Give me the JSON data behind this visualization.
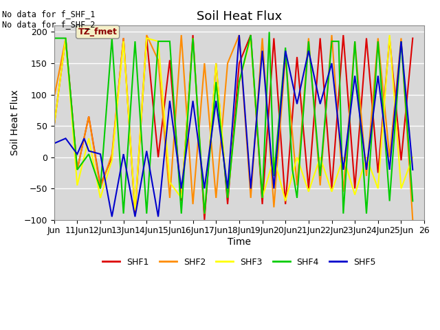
{
  "title": "Soil Heat Flux",
  "ylabel": "Soil Heat Flux",
  "xlabel": "Time",
  "ylim": [
    -100,
    210
  ],
  "yticks": [
    -100,
    -50,
    0,
    50,
    100,
    150,
    200
  ],
  "annotation_text": "No data for f_SHF_1\nNo data for f_SHF_2",
  "tz_label": "TZ_fmet",
  "background_color": "#d8d8d8",
  "series": {
    "SHF1": {
      "color": "#dd0000",
      "x": [
        10.0,
        10.5,
        11.0,
        11.5,
        12.0,
        12.5,
        13.0,
        13.5,
        14.0,
        14.5,
        15.0,
        15.5,
        16.0,
        16.5,
        17.0,
        17.5,
        18.0,
        18.5,
        19.0,
        19.5,
        20.0,
        20.5,
        21.0,
        21.5,
        22.0,
        22.5,
        23.0,
        23.5,
        24.0,
        24.5,
        25.0,
        25.5
      ],
      "y": [
        50,
        190,
        -20,
        65,
        -45,
        0,
        190,
        -90,
        190,
        0,
        155,
        -70,
        195,
        -100,
        150,
        -75,
        150,
        195,
        -75,
        190,
        -75,
        160,
        -50,
        190,
        -50,
        195,
        -50,
        190,
        -25,
        190,
        -5,
        190
      ]
    },
    "SHF2": {
      "color": "#ff8c00",
      "x": [
        10.0,
        10.5,
        11.0,
        11.5,
        12.0,
        12.5,
        13.0,
        13.5,
        14.0,
        14.5,
        15.0,
        15.5,
        16.0,
        16.5,
        17.0,
        17.5,
        18.0,
        18.5,
        19.0,
        19.5,
        20.0,
        20.5,
        21.0,
        21.5,
        22.0,
        22.5,
        23.0,
        23.5,
        24.0,
        24.5,
        25.0,
        25.5
      ],
      "y": [
        95,
        190,
        -20,
        65,
        -50,
        5,
        190,
        -85,
        195,
        155,
        -65,
        195,
        -75,
        150,
        -65,
        150,
        195,
        -65,
        190,
        -80,
        160,
        -45,
        190,
        -45,
        195,
        -55,
        185,
        -30,
        190,
        0,
        190,
        -100
      ]
    },
    "SHF3": {
      "color": "#ffff00",
      "x": [
        10.0,
        10.5,
        11.0,
        11.5,
        12.0,
        12.5,
        13.0,
        13.5,
        14.0,
        14.5,
        15.0,
        15.3,
        15.5,
        16.0,
        16.5,
        17.0,
        17.5,
        18.0,
        18.5,
        19.0,
        19.5,
        20.0,
        20.5,
        21.0,
        21.5,
        22.0,
        22.5,
        23.0,
        23.5,
        24.0,
        24.5,
        25.0,
        25.5
      ],
      "y": [
        50,
        190,
        -45,
        30,
        -65,
        -5,
        185,
        -85,
        190,
        185,
        -40,
        -55,
        -65,
        190,
        -90,
        150,
        -65,
        120,
        190,
        -65,
        0,
        -70,
        0,
        -55,
        0,
        -55,
        0,
        -60,
        0,
        -50,
        195,
        -50,
        0
      ]
    },
    "SHF4": {
      "color": "#00cc00",
      "x": [
        10.0,
        10.5,
        11.0,
        11.5,
        12.0,
        12.5,
        13.0,
        13.5,
        14.0,
        14.5,
        15.0,
        15.5,
        16.0,
        16.5,
        17.0,
        17.5,
        18.0,
        18.5,
        19.0,
        19.3,
        19.5,
        20.0,
        20.3,
        20.5,
        21.0,
        21.5,
        22.0,
        22.3,
        22.5,
        23.0,
        23.5,
        24.0,
        24.5,
        25.0,
        25.5
      ],
      "y": [
        190,
        190,
        -20,
        5,
        -50,
        190,
        -90,
        185,
        -90,
        185,
        185,
        -90,
        190,
        -90,
        120,
        -65,
        120,
        195,
        -65,
        200,
        -30,
        175,
        -20,
        -65,
        185,
        -30,
        185,
        185,
        -90,
        185,
        -90,
        185,
        -70,
        185,
        -70
      ]
    },
    "SHF5": {
      "color": "#0000cc",
      "x": [
        10.0,
        10.5,
        11.0,
        11.3,
        11.5,
        12.0,
        12.5,
        13.0,
        13.5,
        14.0,
        14.5,
        15.0,
        15.5,
        16.0,
        16.5,
        17.0,
        17.5,
        18.0,
        18.5,
        19.0,
        19.5,
        20.0,
        20.5,
        21.0,
        21.5,
        22.0,
        22.5,
        23.0,
        23.5,
        24.0,
        24.5,
        25.0,
        25.5
      ],
      "y": [
        22,
        30,
        5,
        30,
        10,
        5,
        -95,
        5,
        -95,
        10,
        -95,
        90,
        -50,
        90,
        -50,
        90,
        -50,
        195,
        -50,
        170,
        -50,
        170,
        85,
        170,
        85,
        150,
        -20,
        130,
        -20,
        130,
        -20,
        185,
        -20
      ]
    }
  },
  "xtick_labels": [
    "Jun",
    "11Jun",
    "12Jun",
    "13Jun",
    "14Jun",
    "15Jun",
    "16Jun",
    "17Jun",
    "18Jun",
    "19Jun",
    "20Jun",
    "21Jun",
    "22Jun",
    "23Jun",
    "24Jun",
    "25Jun",
    "26"
  ],
  "xtick_positions": [
    10,
    11,
    12,
    13,
    14,
    15,
    16,
    17,
    18,
    19,
    20,
    21,
    22,
    23,
    24,
    25,
    26
  ],
  "xlim": [
    10,
    26
  ]
}
